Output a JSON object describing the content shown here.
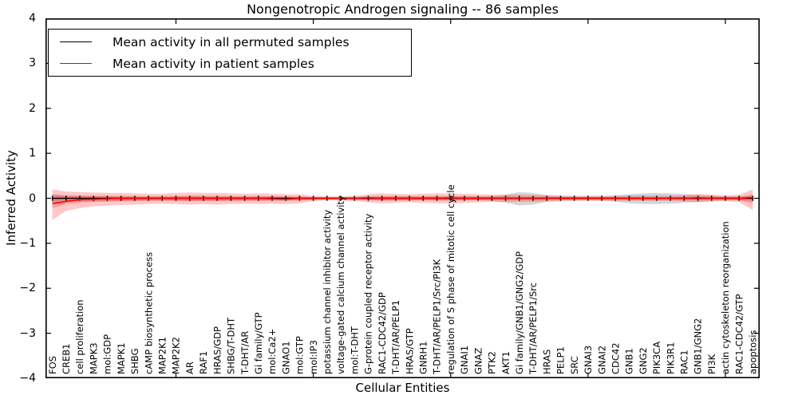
{
  "figure": {
    "title": "Nongenotropic Androgen signaling -- 86 samples"
  },
  "axes": {
    "xlabel": "Cellular Entities",
    "ylabel": "Inferred Activity",
    "ytick_labels": [
      "4",
      "3",
      "2",
      "1",
      "0",
      "−1",
      "−2",
      "−3",
      "−4"
    ]
  },
  "legend": {
    "items": [
      {
        "label": "Mean activity in all permuted samples",
        "color": "#000000"
      },
      {
        "label": "Mean activity in patient samples",
        "color": "#ff0000"
      }
    ]
  },
  "chart_data": {
    "type": "line",
    "title": "Nongenotropic Androgen signaling -- 86 samples",
    "xlabel": "Cellular Entities",
    "ylabel": "Inferred Activity",
    "ylim": [
      -4,
      4
    ],
    "yticks": [
      4,
      3,
      2,
      1,
      0,
      -1,
      -2,
      -3,
      -4
    ],
    "xtick_indices": [
      9,
      19,
      29,
      39,
      49
    ],
    "grid": false,
    "legend_position": "upper left",
    "categories": [
      "FOS",
      "CREB1",
      "cell proliferation",
      "MAPK3",
      "mol:GDP",
      "MAPK1",
      "SHBG",
      "cAMP biosynthetic process",
      "MAP2K1",
      "MAP2K2",
      "AR",
      "RAF1",
      "HRAS/GDP",
      "SHBG/T-DHT",
      "T-DHT/AR",
      "Gi family/GTP",
      "mol:Ca2+",
      "GNAO1",
      "mol:GTP",
      "mol:IP3",
      "potassium channel inhibitor activity",
      "voltage-gated calcium channel activity",
      "mol:T-DHT",
      "G-protein coupled receptor activity",
      "RAC1-CDC42/GDP",
      "T-DHT/AR/PELP1",
      "HRAS/GTP",
      "GNRH1",
      "T-DHT/AR/PELP1/Src/PI3K",
      "regulation of S phase of mitotic cell cycle",
      "GNAI1",
      "GNAZ",
      "PTK2",
      "AKT1",
      "Gi family/GNB1/GNG2/GDP",
      "T-DHT/AR/PELP1/Src",
      "HRAS",
      "PELP1",
      "SRC",
      "GNAI3",
      "GNAI2",
      "CDC42",
      "GNB1",
      "GNG2",
      "PIK3CA",
      "PIK3R1",
      "RAC1",
      "GNB1/GNG2",
      "PI3K",
      "actin cytoskeleton reorganization",
      "RAC1-CDC42/GTP",
      "apoptosis"
    ],
    "series": [
      {
        "name": "Mean activity in all permuted samples",
        "color": "#000000",
        "marker": "|",
        "mean": 0,
        "band_color": "rgba(120,120,120,0.30)",
        "band_upper": [
          0.07,
          0.06,
          0.05,
          0.05,
          0.05,
          0.04,
          0.04,
          0.04,
          0.04,
          0.04,
          0.05,
          0.05,
          0.04,
          0.04,
          0.04,
          0.04,
          0.04,
          0.04,
          0.03,
          0.03,
          0.03,
          0.03,
          0.03,
          0.04,
          0.04,
          0.05,
          0.04,
          0.04,
          0.04,
          0.04,
          0.05,
          0.04,
          0.05,
          0.08,
          0.14,
          0.12,
          0.07,
          0.05,
          0.04,
          0.04,
          0.04,
          0.06,
          0.09,
          0.11,
          0.12,
          0.11,
          0.09,
          0.07,
          0.06,
          0.04,
          0.04,
          0.05
        ],
        "band_lower": [
          -0.1,
          -0.08,
          -0.07,
          -0.07,
          -0.06,
          -0.06,
          -0.05,
          -0.05,
          -0.05,
          -0.05,
          -0.06,
          -0.06,
          -0.05,
          -0.05,
          -0.05,
          -0.05,
          -0.05,
          -0.05,
          -0.04,
          -0.04,
          -0.03,
          -0.03,
          -0.04,
          -0.04,
          -0.05,
          -0.05,
          -0.05,
          -0.04,
          -0.04,
          -0.05,
          -0.05,
          -0.04,
          -0.06,
          -0.1,
          -0.16,
          -0.14,
          -0.08,
          -0.05,
          -0.04,
          -0.04,
          -0.05,
          -0.08,
          -0.11,
          -0.13,
          -0.13,
          -0.12,
          -0.1,
          -0.08,
          -0.07,
          -0.05,
          -0.05,
          -0.06
        ]
      },
      {
        "name": "Mean activity in patient samples",
        "color": "#ff0000",
        "mean": [
          -0.12,
          -0.07,
          -0.03,
          -0.02,
          -0.01,
          0,
          0,
          0,
          0,
          0,
          0,
          0,
          0,
          0,
          0,
          0,
          -0.01,
          -0.02,
          0,
          0,
          0,
          0,
          0,
          0.01,
          0,
          0,
          0,
          0,
          0,
          0.01,
          0,
          0,
          0,
          0,
          0,
          0,
          0,
          0,
          0,
          0,
          0,
          0,
          0,
          0,
          0,
          0,
          0,
          0.01,
          0,
          0,
          0,
          0.02
        ],
        "band_color": "rgba(255,0,0,0.22)",
        "band_inner_scale": 0.45,
        "band_upper": [
          0.2,
          0.15,
          0.14,
          0.13,
          0.12,
          0.12,
          0.11,
          0.1,
          0.1,
          0.12,
          0.13,
          0.12,
          0.12,
          0.11,
          0.1,
          0.11,
          0.1,
          0.09,
          0.09,
          0.05,
          0.04,
          0.04,
          0.05,
          0.09,
          0.11,
          0.1,
          0.09,
          0.1,
          0.11,
          0.11,
          0.1,
          0.09,
          0.08,
          0.08,
          0.08,
          0.07,
          0.07,
          0.06,
          0.06,
          0.06,
          0.06,
          0.06,
          0.06,
          0.06,
          0.06,
          0.06,
          0.07,
          0.1,
          0.08,
          0.06,
          0.08,
          0.2
        ],
        "band_lower": [
          -0.48,
          -0.28,
          -0.22,
          -0.18,
          -0.16,
          -0.15,
          -0.14,
          -0.13,
          -0.12,
          -0.13,
          -0.14,
          -0.13,
          -0.14,
          -0.13,
          -0.12,
          -0.13,
          -0.12,
          -0.13,
          -0.11,
          -0.06,
          -0.05,
          -0.05,
          -0.06,
          -0.09,
          -0.11,
          -0.1,
          -0.09,
          -0.1,
          -0.11,
          -0.11,
          -0.1,
          -0.09,
          -0.08,
          -0.08,
          -0.08,
          -0.08,
          -0.07,
          -0.07,
          -0.06,
          -0.06,
          -0.06,
          -0.06,
          -0.06,
          -0.06,
          -0.06,
          -0.06,
          -0.07,
          -0.09,
          -0.07,
          -0.06,
          -0.09,
          -0.26
        ]
      }
    ]
  }
}
